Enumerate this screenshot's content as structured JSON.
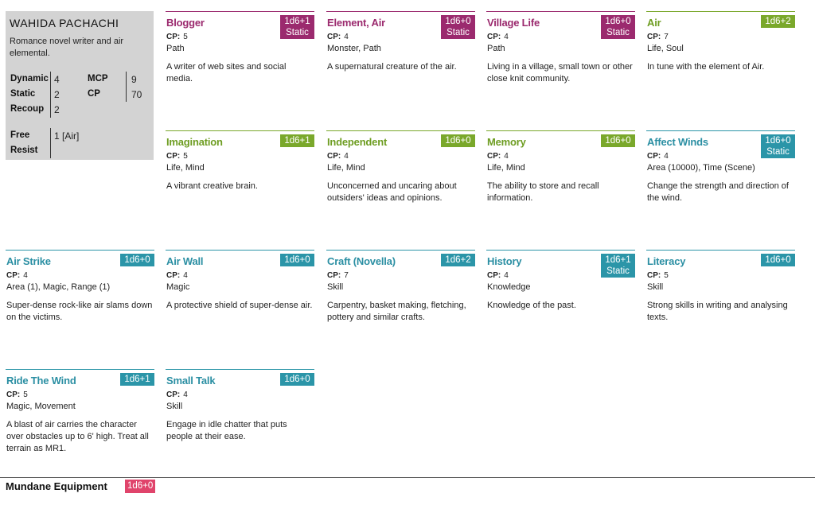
{
  "character": {
    "name": "WAHIDA PACHACHI",
    "description": "Romance novel writer and air elemental.",
    "stats": {
      "dynamic_label": "Dynamic",
      "dynamic_value": "4",
      "static_label": "Static",
      "static_value": "2",
      "recoup_label": "Recoup",
      "recoup_value": "2",
      "mcp_label": "MCP",
      "mcp_value": "9",
      "cp_label": "CP",
      "cp_value": "70",
      "free_label": "Free",
      "resist_label": "Resist",
      "free_resist_value": "1 [Air]"
    }
  },
  "colors": {
    "path": "#9b2a6e",
    "life": "#7aa82b",
    "tech": "#2b95a8",
    "mundane": "#e0446b"
  },
  "cp_label": "CP:",
  "cards": [
    {
      "title": "Blogger",
      "badge_line1": "1d6+1",
      "badge_line2": "Static",
      "cp": "5",
      "tags": "Path",
      "desc": "A writer of web sites and social media.",
      "color": "path"
    },
    {
      "title": "Element, Air",
      "badge_line1": "1d6+0",
      "badge_line2": "Static",
      "cp": "4",
      "tags": "Monster, Path",
      "desc": "A supernatural creature of the air.",
      "color": "path"
    },
    {
      "title": "Village Life",
      "badge_line1": "1d6+0",
      "badge_line2": "Static",
      "cp": "4",
      "tags": "Path",
      "desc": "Living in a village, small town or other close knit community.",
      "color": "path"
    },
    {
      "title": "Air",
      "badge_line1": "1d6+2",
      "badge_line2": "",
      "cp": "7",
      "tags": "Life, Soul",
      "desc": "In tune with the element of Air.",
      "color": "life"
    },
    {
      "title": "Imagination",
      "badge_line1": "1d6+1",
      "badge_line2": "",
      "cp": "5",
      "tags": "Life, Mind",
      "desc": "A vibrant creative brain.",
      "color": "life"
    },
    {
      "title": "Independent",
      "badge_line1": "1d6+0",
      "badge_line2": "",
      "cp": "4",
      "tags": "Life, Mind",
      "desc": "Unconcerned and uncaring about outsiders' ideas and opinions.",
      "color": "life"
    },
    {
      "title": "Memory",
      "badge_line1": "1d6+0",
      "badge_line2": "",
      "cp": "4",
      "tags": "Life, Mind",
      "desc": "The ability to store and recall information.",
      "color": "life"
    },
    {
      "title": "Affect Winds",
      "badge_line1": "1d6+0",
      "badge_line2": "Static",
      "cp": "4",
      "tags": "Area (10000), Time (Scene)",
      "desc": "Change the strength and direction of the wind.",
      "color": "tech"
    },
    {
      "title": "Air Strike",
      "badge_line1": "1d6+0",
      "badge_line2": "",
      "cp": "4",
      "tags": "Area (1), Magic, Range (1)",
      "desc": "Super-dense rock-like air slams down on the victims.",
      "color": "tech"
    },
    {
      "title": "Air Wall",
      "badge_line1": "1d6+0",
      "badge_line2": "",
      "cp": "4",
      "tags": "Magic",
      "desc": "A protective shield of super-dense air.",
      "color": "tech"
    },
    {
      "title": "Craft (Novella)",
      "badge_line1": "1d6+2",
      "badge_line2": "",
      "cp": "7",
      "tags": "Skill",
      "desc": "Carpentry, basket making, fletching, pottery and similar crafts.",
      "color": "tech"
    },
    {
      "title": "History",
      "badge_line1": "1d6+1",
      "badge_line2": "Static",
      "cp": "4",
      "tags": "Knowledge",
      "desc": "Knowledge of the past.",
      "color": "tech"
    },
    {
      "title": "Literacy",
      "badge_line1": "1d6+0",
      "badge_line2": "",
      "cp": "5",
      "tags": "Skill",
      "desc": "Strong skills in writing and analysing texts.",
      "color": "tech"
    },
    {
      "title": "Ride The Wind",
      "badge_line1": "1d6+1",
      "badge_line2": "",
      "cp": "5",
      "tags": "Magic, Movement",
      "desc": "A blast of air carries the character over obstacles up to 6' high. Treat all terrain as MR1.",
      "color": "tech"
    },
    {
      "title": "Small Talk",
      "badge_line1": "1d6+0",
      "badge_line2": "",
      "cp": "4",
      "tags": "Skill",
      "desc": "Engage in idle chatter that puts people at their ease.",
      "color": "tech"
    }
  ],
  "mundane": {
    "label": "Mundane Equipment",
    "badge": "1d6+0"
  }
}
